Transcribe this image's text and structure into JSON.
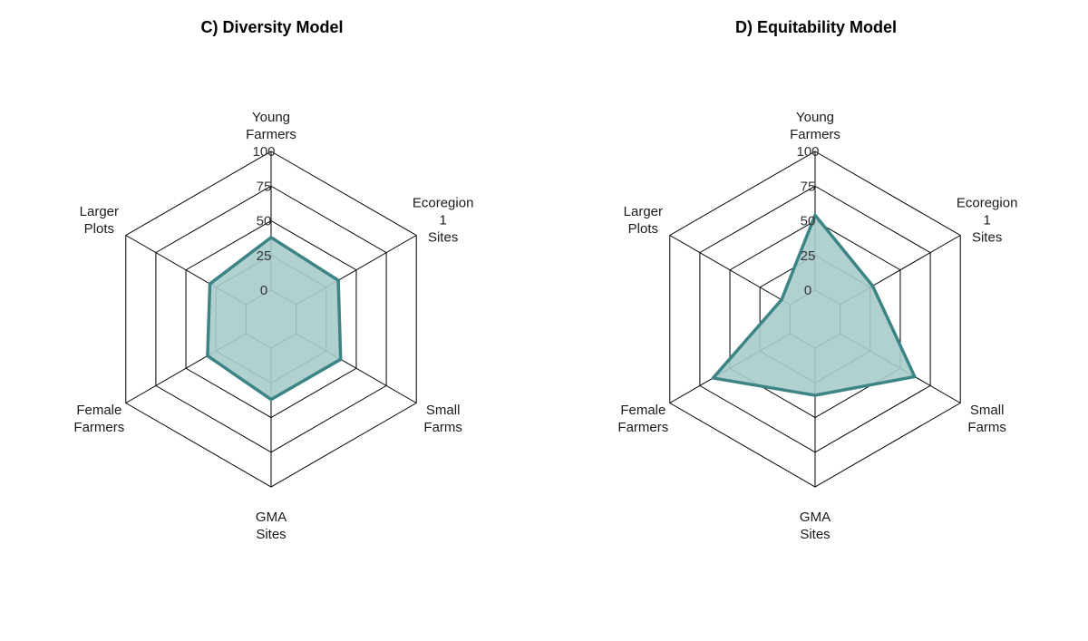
{
  "chart_data": [
    {
      "type": "radar",
      "title": "C) Diversity Model",
      "axes": [
        "Young\nFarmers",
        "Ecoregion\n1\nSites",
        "Small\nFarms",
        "GMA\nSites",
        "Female\nFarmers",
        "Larger\nPlots"
      ],
      "ticks": [
        "0",
        "25",
        "50",
        "75",
        "100"
      ],
      "range": [
        0,
        100
      ],
      "series": [
        {
          "values": [
            38,
            35,
            37,
            37,
            32,
            30
          ]
        }
      ],
      "colors": {
        "fill": "#a8cccc",
        "stroke": "#3d8585"
      }
    },
    {
      "type": "radar",
      "title": "D) Equitability Model",
      "axes": [
        "Young\nFarmers",
        "Ecoregion\n1\nSites",
        "Small\nFarms",
        "GMA\nSites",
        "Female\nFarmers",
        "Larger\nPlots"
      ],
      "ticks": [
        "0",
        "25",
        "50",
        "75",
        "100"
      ],
      "range": [
        0,
        100
      ],
      "series": [
        {
          "values": [
            54,
            27,
            62,
            34,
            64,
            7
          ]
        }
      ],
      "colors": {
        "fill": "#a8cccc",
        "stroke": "#3d8585"
      }
    }
  ]
}
